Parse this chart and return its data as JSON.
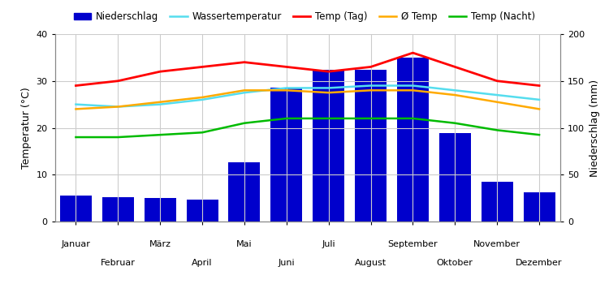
{
  "months": [
    "Januar",
    "Februar",
    "März",
    "April",
    "Mai",
    "Juni",
    "Juli",
    "August",
    "September",
    "Oktober",
    "November",
    "Dezember"
  ],
  "niederschlag": [
    28,
    26,
    25,
    23,
    63,
    143,
    162,
    162,
    175,
    94,
    42,
    31
  ],
  "wassertemperatur": [
    25,
    24.5,
    25,
    26,
    27.5,
    28.5,
    28.5,
    29,
    29,
    28,
    27,
    26
  ],
  "temp_tag": [
    29,
    30,
    32,
    33,
    34,
    33,
    32,
    33,
    36,
    33,
    30,
    29
  ],
  "avg_temp": [
    24,
    24.5,
    25.5,
    26.5,
    28,
    28,
    27.5,
    28,
    28,
    27,
    25.5,
    24
  ],
  "temp_nacht": [
    18,
    18,
    18.5,
    19,
    21,
    22,
    22,
    22,
    22,
    21,
    19.5,
    18.5
  ],
  "ylabel_left": "Temperatur (°C)",
  "ylabel_right": "Niederschlag (mm)",
  "ylim_left": [
    0,
    40
  ],
  "ylim_right": [
    0,
    200
  ],
  "yticks_left": [
    0,
    10,
    20,
    30,
    40
  ],
  "yticks_right": [
    0,
    50,
    100,
    150,
    200
  ],
  "legend_labels": [
    "Niederschlag",
    "Wassertemperatur",
    "Temp (Tag)",
    "Ø Temp",
    "Temp (Nacht)"
  ],
  "bar_color": "#0000CC",
  "water_temp_color": "#55DDEE",
  "temp_tag_color": "#FF0000",
  "avg_temp_color": "#FFAA00",
  "temp_nacht_color": "#00BB00",
  "background_color": "#ffffff",
  "grid_color": "#cccccc"
}
